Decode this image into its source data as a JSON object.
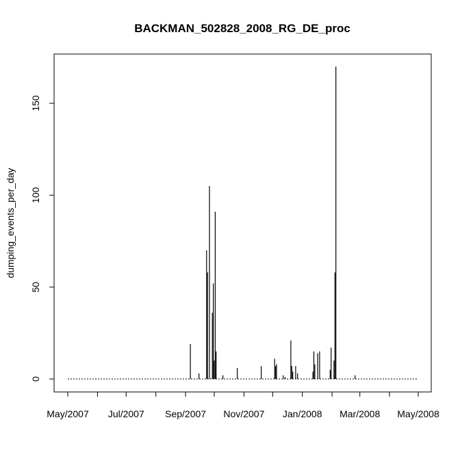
{
  "chart_data": {
    "type": "bar",
    "title": "BACKMAN_502828_2008_RG_DE_proc",
    "xlabel": "",
    "ylabel": "dumping_events_per_day",
    "x_range": [
      "2007-05-01",
      "2008-05-01"
    ],
    "ylim": [
      0,
      170
    ],
    "y_ticks": [
      0,
      50,
      100,
      150
    ],
    "x_ticks": [
      {
        "date": "2007-05-01",
        "label": "May/2007"
      },
      {
        "date": "2007-06-01",
        "label": ""
      },
      {
        "date": "2007-07-01",
        "label": "Jul/2007"
      },
      {
        "date": "2007-08-01",
        "label": ""
      },
      {
        "date": "2007-09-01",
        "label": "Sep/2007"
      },
      {
        "date": "2007-10-01",
        "label": ""
      },
      {
        "date": "2007-11-01",
        "label": "Nov/2007"
      },
      {
        "date": "2007-12-01",
        "label": ""
      },
      {
        "date": "2008-01-01",
        "label": "Jan/2008"
      },
      {
        "date": "2008-02-01",
        "label": ""
      },
      {
        "date": "2008-03-01",
        "label": "Mar/2008"
      },
      {
        "date": "2008-04-01",
        "label": ""
      },
      {
        "date": "2008-05-01",
        "label": "May/2008"
      }
    ],
    "grid": false,
    "legend": "none",
    "points": [
      {
        "date": "2007-09-06",
        "value": 19
      },
      {
        "date": "2007-09-15",
        "value": 3
      },
      {
        "date": "2007-09-23",
        "value": 70
      },
      {
        "date": "2007-09-24",
        "value": 58
      },
      {
        "date": "2007-09-26",
        "value": 105
      },
      {
        "date": "2007-09-29",
        "value": 36
      },
      {
        "date": "2007-09-30",
        "value": 52
      },
      {
        "date": "2007-10-01",
        "value": 10
      },
      {
        "date": "2007-10-02",
        "value": 91
      },
      {
        "date": "2007-10-03",
        "value": 15
      },
      {
        "date": "2007-10-10",
        "value": 2
      },
      {
        "date": "2007-10-25",
        "value": 6
      },
      {
        "date": "2007-11-19",
        "value": 7
      },
      {
        "date": "2007-12-03",
        "value": 11
      },
      {
        "date": "2007-12-04",
        "value": 7
      },
      {
        "date": "2007-12-05",
        "value": 8
      },
      {
        "date": "2007-12-12",
        "value": 2
      },
      {
        "date": "2007-12-14",
        "value": 1
      },
      {
        "date": "2007-12-20",
        "value": 21
      },
      {
        "date": "2007-12-21",
        "value": 7
      },
      {
        "date": "2007-12-22",
        "value": 4
      },
      {
        "date": "2007-12-25",
        "value": 7
      },
      {
        "date": "2007-12-27",
        "value": 3
      },
      {
        "date": "2008-01-12",
        "value": 4
      },
      {
        "date": "2008-01-13",
        "value": 15
      },
      {
        "date": "2008-01-14",
        "value": 8
      },
      {
        "date": "2008-01-17",
        "value": 14
      },
      {
        "date": "2008-01-19",
        "value": 15
      },
      {
        "date": "2008-01-30",
        "value": 5
      },
      {
        "date": "2008-01-31",
        "value": 17
      },
      {
        "date": "2008-02-03",
        "value": 10
      },
      {
        "date": "2008-02-04",
        "value": 58
      },
      {
        "date": "2008-02-05",
        "value": 170
      },
      {
        "date": "2008-02-25",
        "value": 2
      }
    ]
  }
}
